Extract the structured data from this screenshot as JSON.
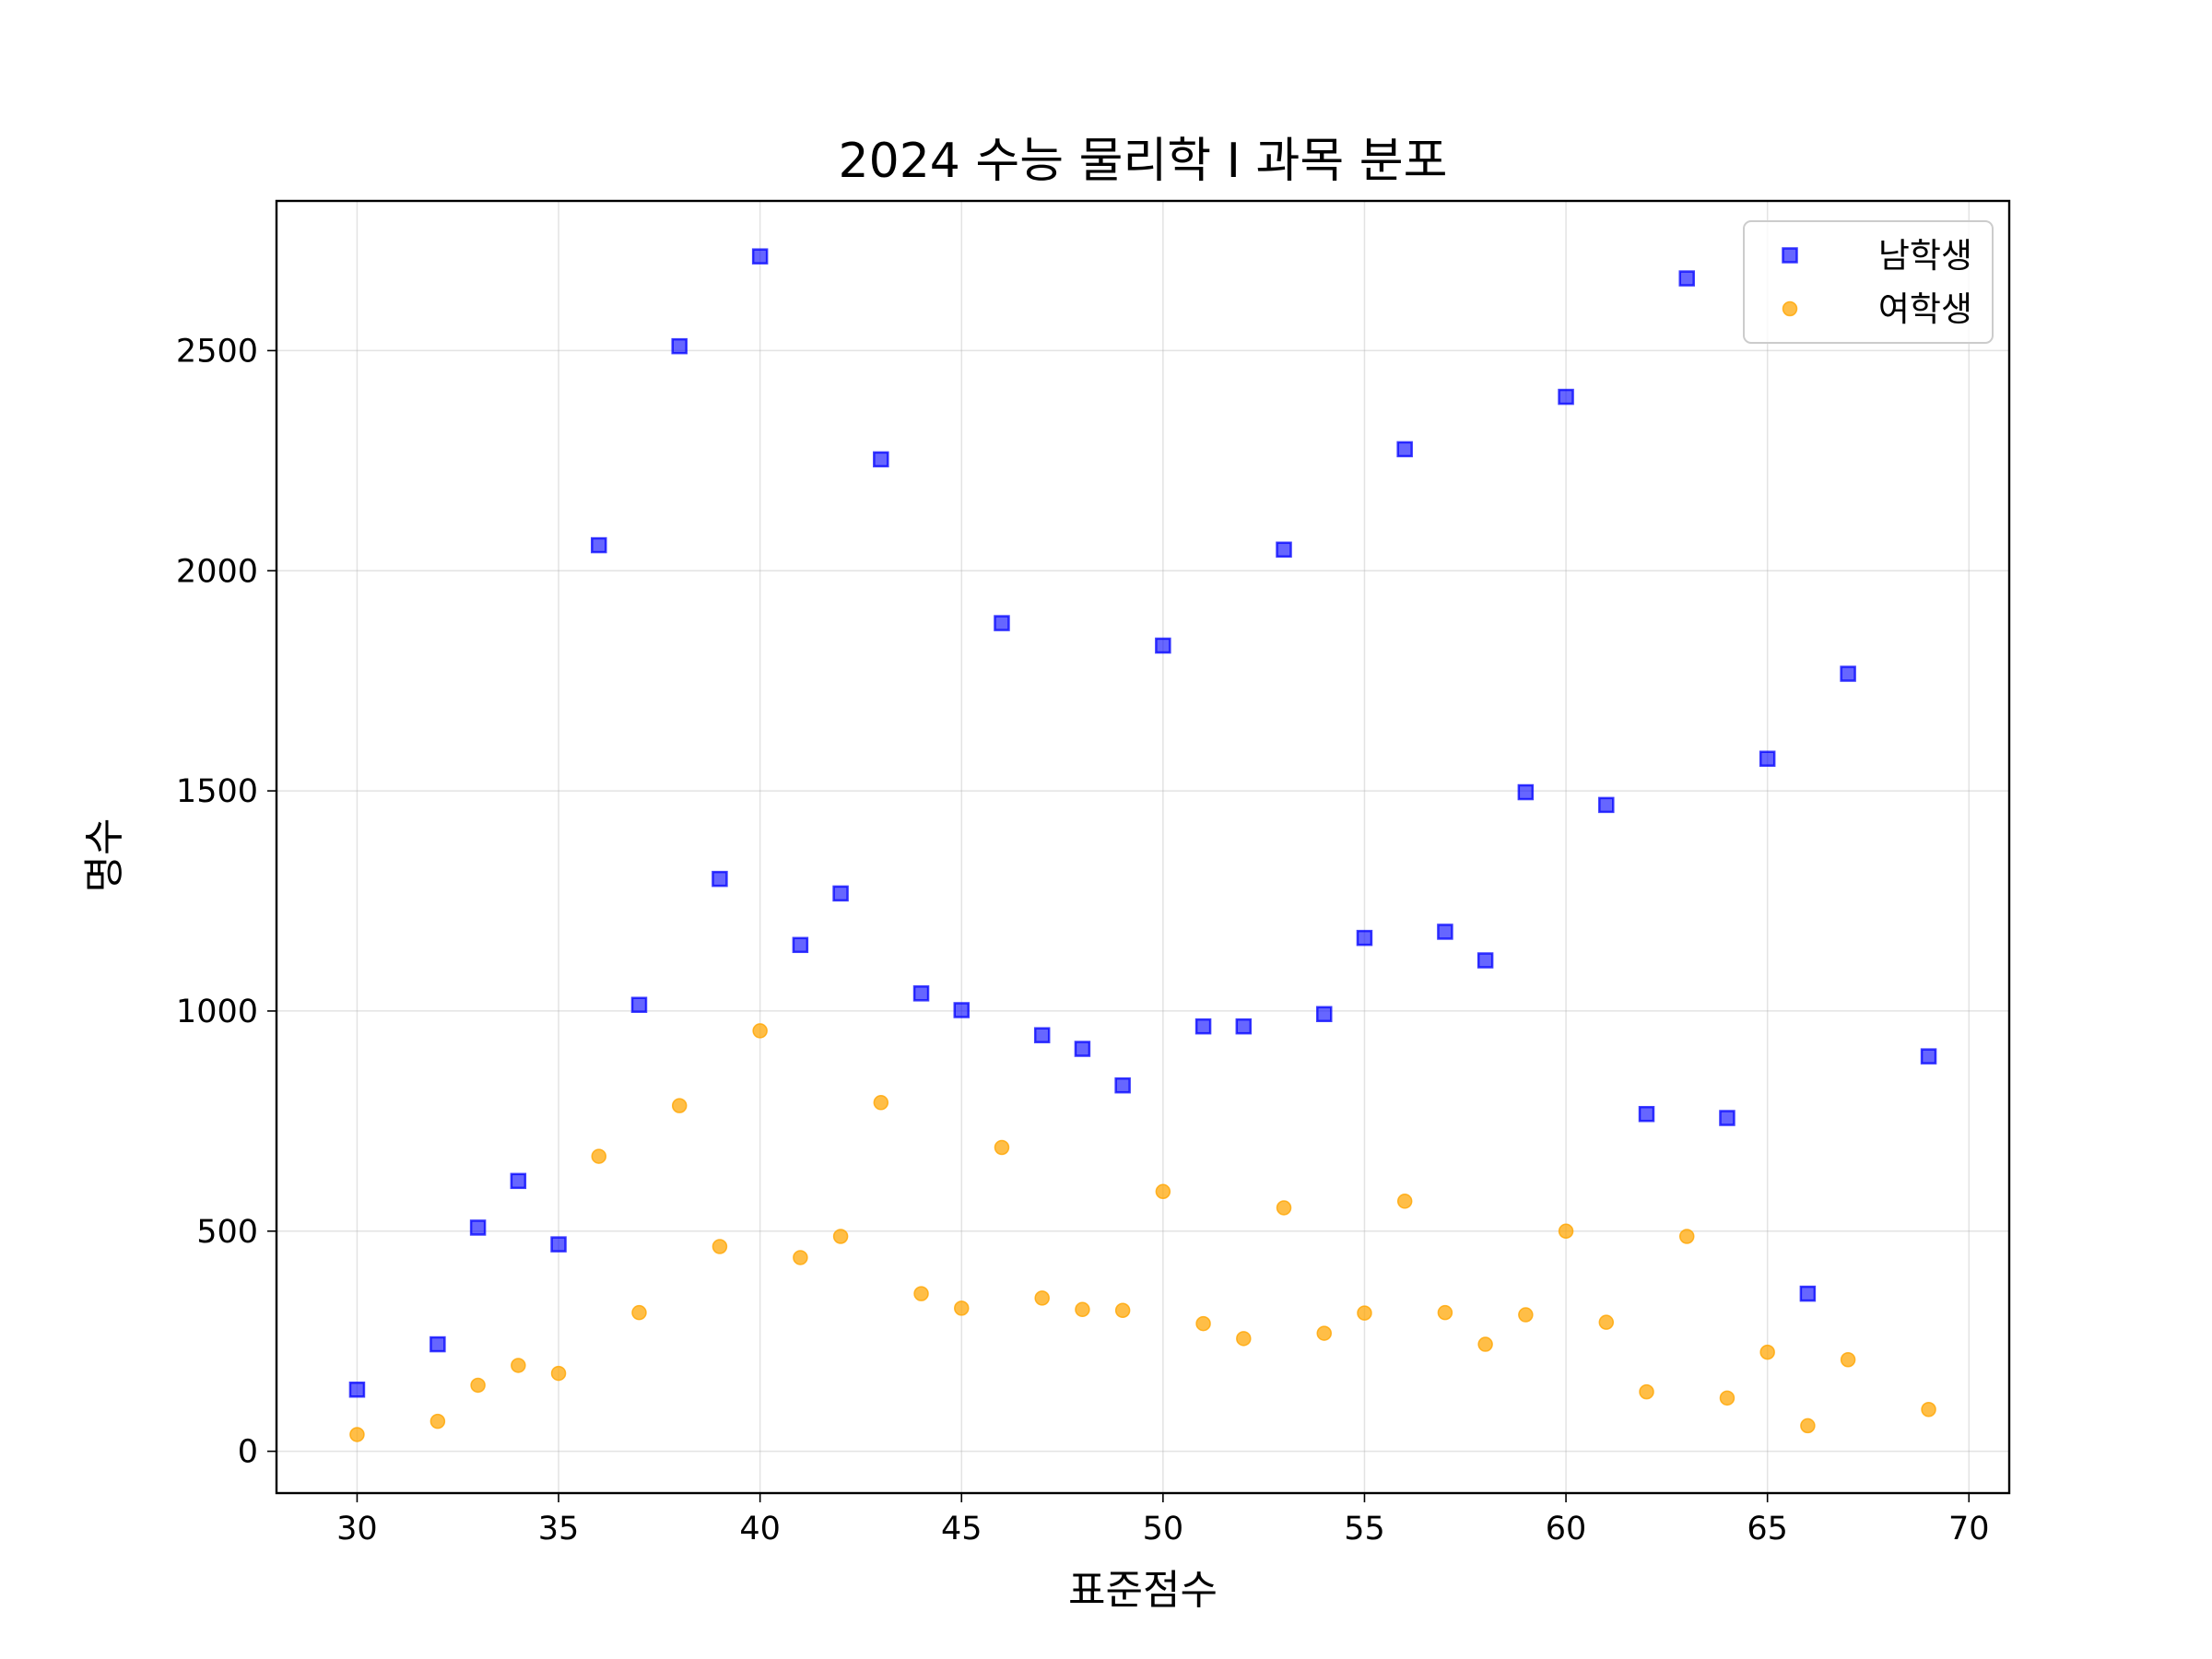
{
  "chart_data": {
    "type": "scatter",
    "title": "2024 수능 물리학 I 과목 분포",
    "xlabel": "표준점수",
    "ylabel": "명수",
    "xlim": [
      28,
      71
    ],
    "ylim": [
      -95,
      2840
    ],
    "xticks": [
      30,
      35,
      40,
      45,
      50,
      55,
      60,
      65,
      70
    ],
    "yticks": [
      0,
      500,
      1000,
      1500,
      2000,
      2500
    ],
    "grid": true,
    "legend_position": "top-right",
    "series": [
      {
        "name": "남학생",
        "marker": "square",
        "color": "#0000ff",
        "x": [
          30,
          32,
          33,
          34,
          35,
          36,
          37,
          38,
          39,
          40,
          41,
          42,
          43,
          44,
          45,
          46,
          47,
          48,
          49,
          50,
          51,
          52,
          53,
          54,
          55,
          56,
          57,
          58,
          59,
          60,
          61,
          62,
          63,
          64,
          65,
          66,
          67,
          69
        ],
        "y": [
          140,
          243,
          508,
          614,
          470,
          2058,
          1014,
          2510,
          1300,
          2714,
          1150,
          1267,
          2253,
          1040,
          1002,
          1881,
          945,
          914,
          831,
          1830,
          965,
          965,
          2048,
          993,
          1166,
          2276,
          1180,
          1115,
          1497,
          2395,
          1468,
          766,
          2664,
          757,
          1573,
          358,
          1766,
          897
        ]
      },
      {
        "name": "여학생",
        "marker": "circle",
        "color": "#ffa500",
        "x": [
          30,
          32,
          33,
          34,
          35,
          36,
          37,
          38,
          39,
          40,
          41,
          42,
          43,
          44,
          45,
          46,
          47,
          48,
          49,
          50,
          51,
          52,
          53,
          54,
          55,
          56,
          57,
          58,
          59,
          60,
          61,
          62,
          63,
          64,
          65,
          66,
          67,
          69
        ],
        "y": [
          38,
          68,
          150,
          195,
          177,
          670,
          315,
          785,
          465,
          955,
          440,
          488,
          792,
          358,
          325,
          690,
          348,
          322,
          320,
          590,
          290,
          256,
          553,
          268,
          314,
          568,
          315,
          243,
          310,
          500,
          293,
          135,
          488,
          121,
          225,
          58,
          208,
          95
        ]
      }
    ]
  }
}
